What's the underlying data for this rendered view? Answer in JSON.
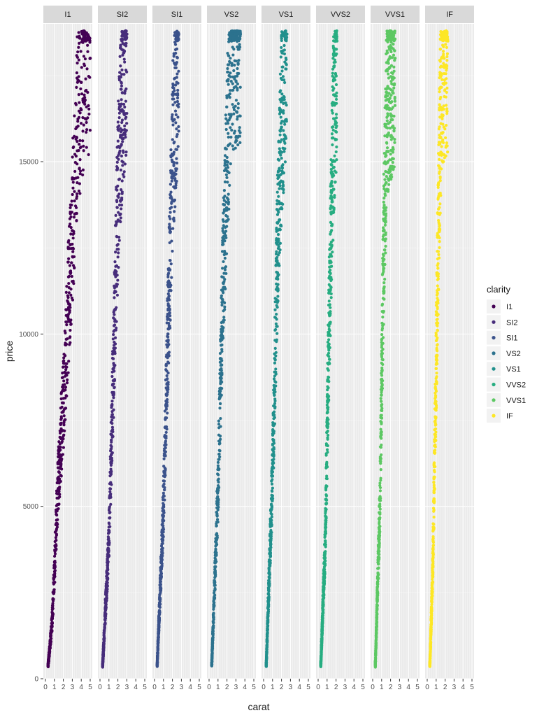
{
  "chart_data": {
    "type": "scatter",
    "facet_by": "clarity",
    "xlabel": "carat",
    "ylabel": "price",
    "xlim": [
      0,
      5
    ],
    "ylim": [
      0,
      19000
    ],
    "x_ticks": [
      "0",
      "1",
      "2",
      "3",
      "4",
      "5"
    ],
    "y_ticks": [
      0,
      5000,
      10000,
      15000
    ],
    "y_tick_labels": [
      "0",
      "5000",
      "10000",
      "15000"
    ],
    "legend": {
      "title": "clarity",
      "position": "right",
      "entries": [
        "I1",
        "SI2",
        "SI1",
        "VS2",
        "VS1",
        "VVS2",
        "VVS1",
        "IF"
      ]
    },
    "series": [
      {
        "name": "I1",
        "color": "#440154",
        "max_carat": 5.0,
        "max_price": 18800,
        "sample_points": [
          [
            0.3,
            400
          ],
          [
            0.7,
            1500
          ],
          [
            1.0,
            3000
          ],
          [
            1.2,
            4500
          ],
          [
            1.5,
            6000
          ],
          [
            2.0,
            8000
          ],
          [
            2.5,
            10500
          ],
          [
            3.0,
            13000
          ],
          [
            3.5,
            16000
          ],
          [
            4.0,
            17300
          ],
          [
            4.5,
            18500
          ],
          [
            5.0,
            18000
          ]
        ]
      },
      {
        "name": "SI2",
        "color": "#472D7B",
        "max_carat": 3.0,
        "max_price": 18800,
        "sample_points": [
          [
            0.3,
            400
          ],
          [
            1.0,
            4000
          ],
          [
            1.5,
            9000
          ],
          [
            2.0,
            14000
          ],
          [
            2.5,
            17000
          ],
          [
            3.0,
            18700
          ]
        ]
      },
      {
        "name": "SI1",
        "color": "#3B528B",
        "max_carat": 2.7,
        "max_price": 18800,
        "sample_points": [
          [
            0.3,
            400
          ],
          [
            1.0,
            5000
          ],
          [
            1.5,
            10000
          ],
          [
            2.0,
            15000
          ],
          [
            2.7,
            18700
          ]
        ]
      },
      {
        "name": "VS2",
        "color": "#2C728E",
        "max_carat": 3.5,
        "max_price": 18800,
        "sample_points": [
          [
            0.3,
            400
          ],
          [
            1.0,
            5500
          ],
          [
            1.5,
            11000
          ],
          [
            2.0,
            15000
          ],
          [
            2.5,
            18500
          ],
          [
            3.5,
            18700
          ]
        ]
      },
      {
        "name": "VS1",
        "color": "#21908C",
        "max_carat": 2.6,
        "max_price": 18800,
        "sample_points": [
          [
            0.3,
            400
          ],
          [
            1.0,
            6000
          ],
          [
            1.5,
            12000
          ],
          [
            2.0,
            16000
          ],
          [
            2.6,
            18700
          ]
        ]
      },
      {
        "name": "VVS2",
        "color": "#27AD81",
        "max_carat": 2.1,
        "max_price": 18800,
        "sample_points": [
          [
            0.3,
            400
          ],
          [
            0.8,
            4000
          ],
          [
            1.2,
            10000
          ],
          [
            1.6,
            15000
          ],
          [
            2.1,
            18500
          ]
        ]
      },
      {
        "name": "VVS1",
        "color": "#5DC863",
        "max_carat": 2.5,
        "max_price": 18800,
        "sample_points": [
          [
            0.3,
            400
          ],
          [
            0.8,
            5000
          ],
          [
            1.2,
            12000
          ],
          [
            1.6,
            17000
          ],
          [
            2.5,
            18000
          ]
        ]
      },
      {
        "name": "IF",
        "color": "#FDE725",
        "max_carat": 2.3,
        "max_price": 18800,
        "sample_points": [
          [
            0.3,
            400
          ],
          [
            0.6,
            3000
          ],
          [
            1.0,
            9000
          ],
          [
            1.3,
            14000
          ],
          [
            1.6,
            18000
          ],
          [
            2.3,
            18500
          ]
        ]
      }
    ]
  }
}
